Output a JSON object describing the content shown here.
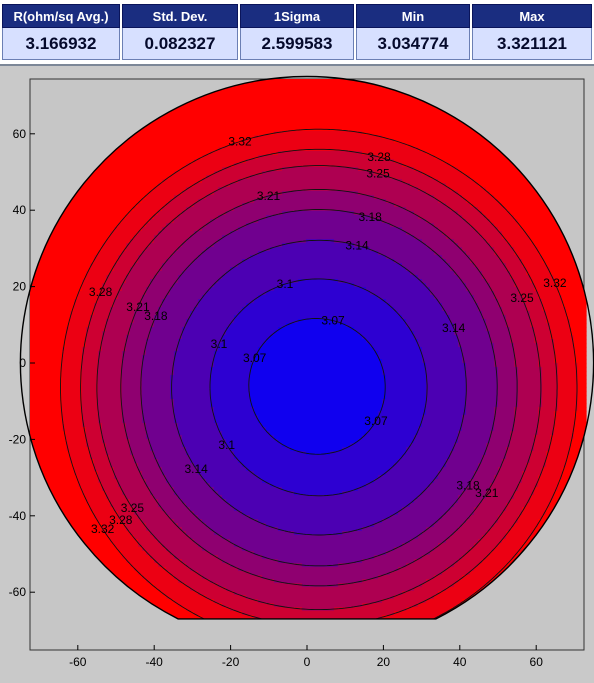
{
  "stats": [
    {
      "label": "R(ohm/sq Avg.)",
      "value": "3.166932"
    },
    {
      "label": "Std. Dev.",
      "value": "0.082327"
    },
    {
      "label": "1Sigma",
      "value": "2.599583"
    },
    {
      "label": "Min",
      "value": "3.034774"
    },
    {
      "label": "Max",
      "value": "3.321121"
    }
  ],
  "chart_data": {
    "type": "contour",
    "title": "",
    "xlabel": "",
    "ylabel": "",
    "xlim": [
      -75,
      75
    ],
    "ylim": [
      -75,
      75
    ],
    "xticks": [
      -60,
      -40,
      -20,
      0,
      20,
      40,
      60
    ],
    "yticks": [
      60,
      40,
      20,
      0,
      -20,
      -40,
      -60
    ],
    "wafer_radius": 75,
    "colormap": {
      "low": "#0000ff",
      "high": "#ff0000"
    },
    "value_range": [
      3.034774,
      3.321121
    ],
    "contour_levels": [
      3.07,
      3.1,
      3.14,
      3.18,
      3.21,
      3.25,
      3.28,
      3.32
    ],
    "grid": false
  }
}
